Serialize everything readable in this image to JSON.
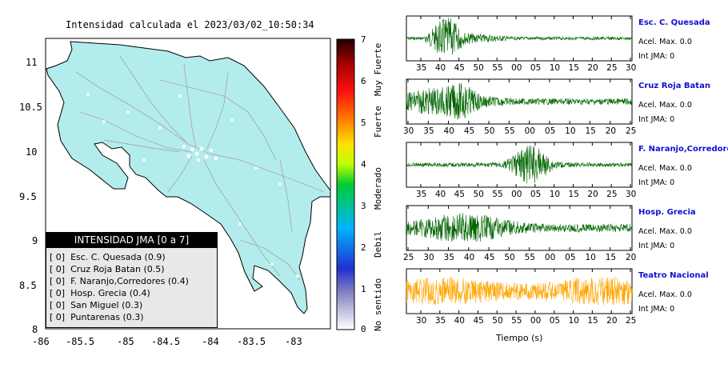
{
  "map": {
    "title": "Intensidad calculada el 2023/03/02_10:50:34",
    "x_ticks": [
      "-86",
      "-85.5",
      "-85",
      "-84.5",
      "-84",
      "-83.5",
      "-83"
    ],
    "y_ticks": [
      "11",
      "10.5",
      "10",
      "9.5",
      "9",
      "8.5",
      "8"
    ],
    "land_color": "#b3ecec",
    "legend": {
      "title": "INTENSIDAD JMA [0 a 7]",
      "items": [
        "[ 0]  Esc. C. Quesada (0.9)",
        "[ 0]  Cruz Roja Batan (0.5)",
        "[ 0]  F. Naranjo,Corredores (0.4)",
        "[ 0]  Hosp. Grecia (0.4)",
        "[ 0]  San Miguel (0.3)",
        "[ 0]  Puntarenas (0.3)"
      ]
    }
  },
  "colorbar": {
    "tick_labels": [
      "7",
      "6",
      "5",
      "4",
      "3",
      "2",
      "1",
      "0"
    ],
    "category_labels": [
      "Muy Fuerte",
      "Fuerte",
      "Moderado",
      "Debil",
      "No sentido"
    ]
  },
  "stations": [
    {
      "name": "Esc. C. Quesada",
      "accel": "Acel. Max. 0.0",
      "int": "Int JMA: 0",
      "color": "#006400",
      "ticks": [
        "35",
        "40",
        "45",
        "50",
        "55",
        "00",
        "05",
        "10",
        "15",
        "20",
        "25",
        "30"
      ]
    },
    {
      "name": "Cruz Roja Batan",
      "accel": "Acel. Max. 0.0",
      "int": "Int JMA: 0",
      "color": "#006400",
      "ticks": [
        "30",
        "35",
        "40",
        "45",
        "50",
        "55",
        "00",
        "05",
        "10",
        "15",
        "20",
        "25"
      ]
    },
    {
      "name": "F. Naranjo,Corredores",
      "accel": "Acel. Max. 0.0",
      "int": "Int JMA: 0",
      "color": "#006400",
      "ticks": [
        "35",
        "40",
        "45",
        "50",
        "55",
        "00",
        "05",
        "10",
        "15",
        "20",
        "25",
        "30"
      ]
    },
    {
      "name": "Hosp. Grecia",
      "accel": "Acel. Max. 0.0",
      "int": "Int JMA: 0",
      "color": "#006400",
      "ticks": [
        "25",
        "30",
        "35",
        "40",
        "45",
        "50",
        "55",
        "00",
        "05",
        "10",
        "15",
        "20"
      ]
    },
    {
      "name": "Teatro Nacional",
      "accel": "Acel. Max. 0.0",
      "int": "Int JMA: 0",
      "color": "#ffa500",
      "ticks": [
        "30",
        "35",
        "40",
        "45",
        "50",
        "55",
        "00",
        "05",
        "10",
        "15",
        "20",
        "25"
      ]
    }
  ],
  "time_axis_label": "Tiempo (s)"
}
